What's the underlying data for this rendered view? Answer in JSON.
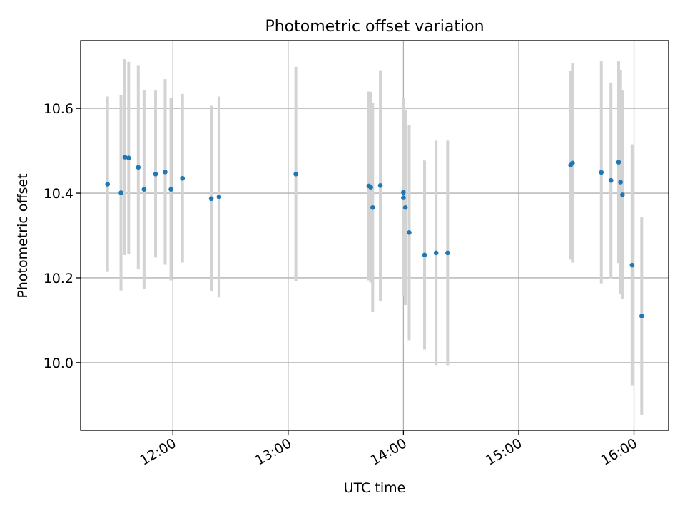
{
  "chart_data": {
    "type": "scatter",
    "title": "Photometric offset variation",
    "xlabel": "UTC time",
    "ylabel": "Photometric offset",
    "x_axis": "time",
    "xlim": [
      "11:12",
      "16:18"
    ],
    "ylim": [
      9.84,
      10.76
    ],
    "x_ticks": [
      "12:00",
      "13:00",
      "14:00",
      "15:00",
      "16:00"
    ],
    "y_ticks": [
      10.0,
      10.2,
      10.4,
      10.6
    ],
    "grid": true,
    "legend": "none",
    "marker_color": "#1f77b4",
    "errorbar_color": "#d3d3d3",
    "series": [
      {
        "x": [
          "11:26",
          "11:33",
          "11:35",
          "11:37",
          "11:42",
          "11:45",
          "11:51",
          "11:56",
          "11:59",
          "12:05",
          "12:20",
          "12:24",
          "13:04",
          "13:42",
          "13:43",
          "13:44",
          "13:48",
          "14:00",
          "14:00",
          "14:01",
          "14:03",
          "14:11",
          "14:17",
          "14:23",
          "15:27",
          "15:28",
          "15:43",
          "15:48",
          "15:52",
          "15:53",
          "15:54",
          "15:59",
          "16:04"
        ],
        "y": [
          10.421,
          10.401,
          10.485,
          10.483,
          10.461,
          10.409,
          10.445,
          10.45,
          10.409,
          10.435,
          10.387,
          10.391,
          10.445,
          10.417,
          10.414,
          10.366,
          10.418,
          10.402,
          10.389,
          10.366,
          10.307,
          10.254,
          10.259,
          10.259,
          10.466,
          10.471,
          10.449,
          10.43,
          10.473,
          10.426,
          10.396,
          10.23,
          10.11
        ],
        "yerr": [
          0.207,
          0.231,
          0.231,
          0.227,
          0.241,
          0.235,
          0.197,
          0.219,
          0.215,
          0.199,
          0.219,
          0.237,
          0.253,
          0.223,
          0.225,
          0.247,
          0.272,
          0.223,
          0.233,
          0.23,
          0.254,
          0.223,
          0.265,
          0.265,
          0.223,
          0.235,
          0.262,
          0.231,
          0.238,
          0.265,
          0.246,
          0.285,
          0.233
        ]
      }
    ]
  }
}
